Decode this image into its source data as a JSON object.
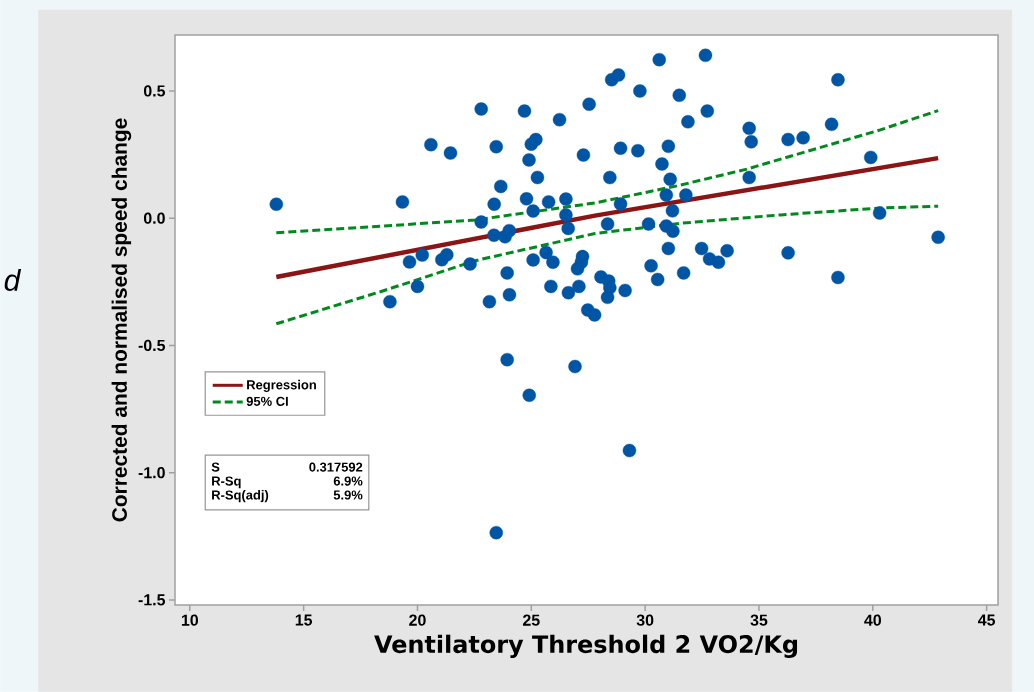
{
  "chart_data": {
    "type": "scatter",
    "xlabel": "Ventilatory Threshold 2 VO2/Kg",
    "ylabel": "Corrected and normalised speed change",
    "xlim": [
      9.35,
      45.5
    ],
    "xticks": [
      10,
      15,
      20,
      25,
      30,
      35,
      40,
      45
    ],
    "ylim": [
      -1.52,
      0.72
    ],
    "yticks": [
      {
        "value": -1.5,
        "label": "-1.5"
      },
      {
        "value": -1.0,
        "label": "-1.0"
      },
      {
        "value": -0.5,
        "label": "-0.5"
      },
      {
        "value": 0.0,
        "label": "0.0"
      },
      {
        "value": 0.5,
        "label": "0.5"
      }
    ],
    "legend": "bottom left",
    "grid": false,
    "annotations": [
      "d",
      "S",
      "0.317592",
      "R-Sq",
      "6.9%",
      "R-Sq(adj)",
      "5.9%"
    ],
    "series": [
      {
        "marker": "circle",
        "color": "#0055a5",
        "x": [
          13.8,
          19.34,
          20.59,
          21.45,
          22.8,
          23.46,
          23.66,
          23.37,
          22.8,
          23.36,
          23.85,
          24.03,
          24.7,
          25.0,
          25.2,
          24.9,
          25.27,
          24.79,
          25.08,
          25.76,
          26.24,
          26.52,
          26.52,
          26.62,
          27.29,
          27.54,
          19.65,
          20.21,
          21.07,
          21.29,
          22.31,
          20.0,
          18.79,
          23.94,
          24.04,
          23.16,
          25.08,
          25.65,
          25.95,
          25.86,
          26.63,
          27.09,
          27.03,
          27.25,
          27.2,
          27.48,
          27.78,
          23.94,
          26.92,
          24.91,
          23.46,
          29.31,
          30.62,
          32.65,
          28.53,
          28.83,
          29.77,
          31.5,
          32.73,
          31.88,
          38.47,
          34.57,
          34.66,
          36.28,
          36.94,
          38.19,
          28.92,
          29.68,
          31.02,
          30.74,
          28.45,
          31.1,
          34.57,
          39.91,
          28.92,
          30.93,
          31.79,
          31.2,
          28.35,
          30.15,
          30.93,
          31.22,
          40.3,
          42.87,
          31.02,
          32.48,
          33.6,
          32.83,
          33.22,
          36.28,
          38.47,
          30.26,
          30.55,
          31.69,
          28.06,
          28.4,
          28.45,
          28.35,
          29.12
        ],
        "values": [
          0.055,
          0.064,
          0.289,
          0.256,
          0.429,
          0.281,
          0.125,
          0.055,
          -0.015,
          -0.067,
          -0.073,
          -0.049,
          0.421,
          0.291,
          0.309,
          0.229,
          0.16,
          0.076,
          0.028,
          0.064,
          0.387,
          0.075,
          0.013,
          -0.04,
          0.248,
          0.448,
          -0.172,
          -0.145,
          -0.163,
          -0.144,
          -0.18,
          -0.268,
          -0.328,
          -0.215,
          -0.301,
          -0.328,
          -0.164,
          -0.135,
          -0.173,
          -0.268,
          -0.293,
          -0.268,
          -0.199,
          -0.151,
          -0.173,
          -0.361,
          -0.38,
          -0.556,
          -0.583,
          -0.696,
          -1.236,
          -0.913,
          0.623,
          0.64,
          0.544,
          0.563,
          0.5,
          0.483,
          0.421,
          0.379,
          0.544,
          0.353,
          0.3,
          0.309,
          0.316,
          0.369,
          0.275,
          0.265,
          0.283,
          0.213,
          0.16,
          0.153,
          0.16,
          0.239,
          0.056,
          0.091,
          0.091,
          0.029,
          -0.023,
          -0.023,
          -0.031,
          -0.051,
          0.02,
          -0.075,
          -0.119,
          -0.119,
          -0.128,
          -0.16,
          -0.173,
          -0.136,
          -0.233,
          -0.187,
          -0.241,
          -0.215,
          -0.231,
          -0.247,
          -0.273,
          -0.311,
          -0.284
        ]
      },
      {
        "type": "line",
        "name": "Regression",
        "color": "#8b1414",
        "line_style": "solid",
        "marker": "none",
        "x": [
          13.8,
          27.8,
          42.87
        ],
        "values": [
          -0.231,
          0.01,
          0.236
        ]
      },
      {
        "type": "line",
        "name": "95% CI",
        "color": "#008a1e",
        "line_style": "dashed",
        "marker": "none",
        "x": [
          13.8,
          18.44,
          22.54,
          27.8,
          31.4,
          34.47,
          40.33,
          42.87
        ],
        "values": [
          -0.057,
          -0.031,
          -0.007,
          0.06,
          0.127,
          0.193,
          0.347,
          0.423
        ]
      },
      {
        "type": "line",
        "color": "#008a1e",
        "line_style": "dashed",
        "marker": "none",
        "x": [
          13.8,
          18.44,
          22.54,
          27.8,
          31.54,
          35.94,
          40.33,
          42.87
        ],
        "values": [
          -0.415,
          -0.287,
          -0.167,
          -0.06,
          -0.02,
          0.013,
          0.04,
          0.047
        ]
      }
    ]
  }
}
